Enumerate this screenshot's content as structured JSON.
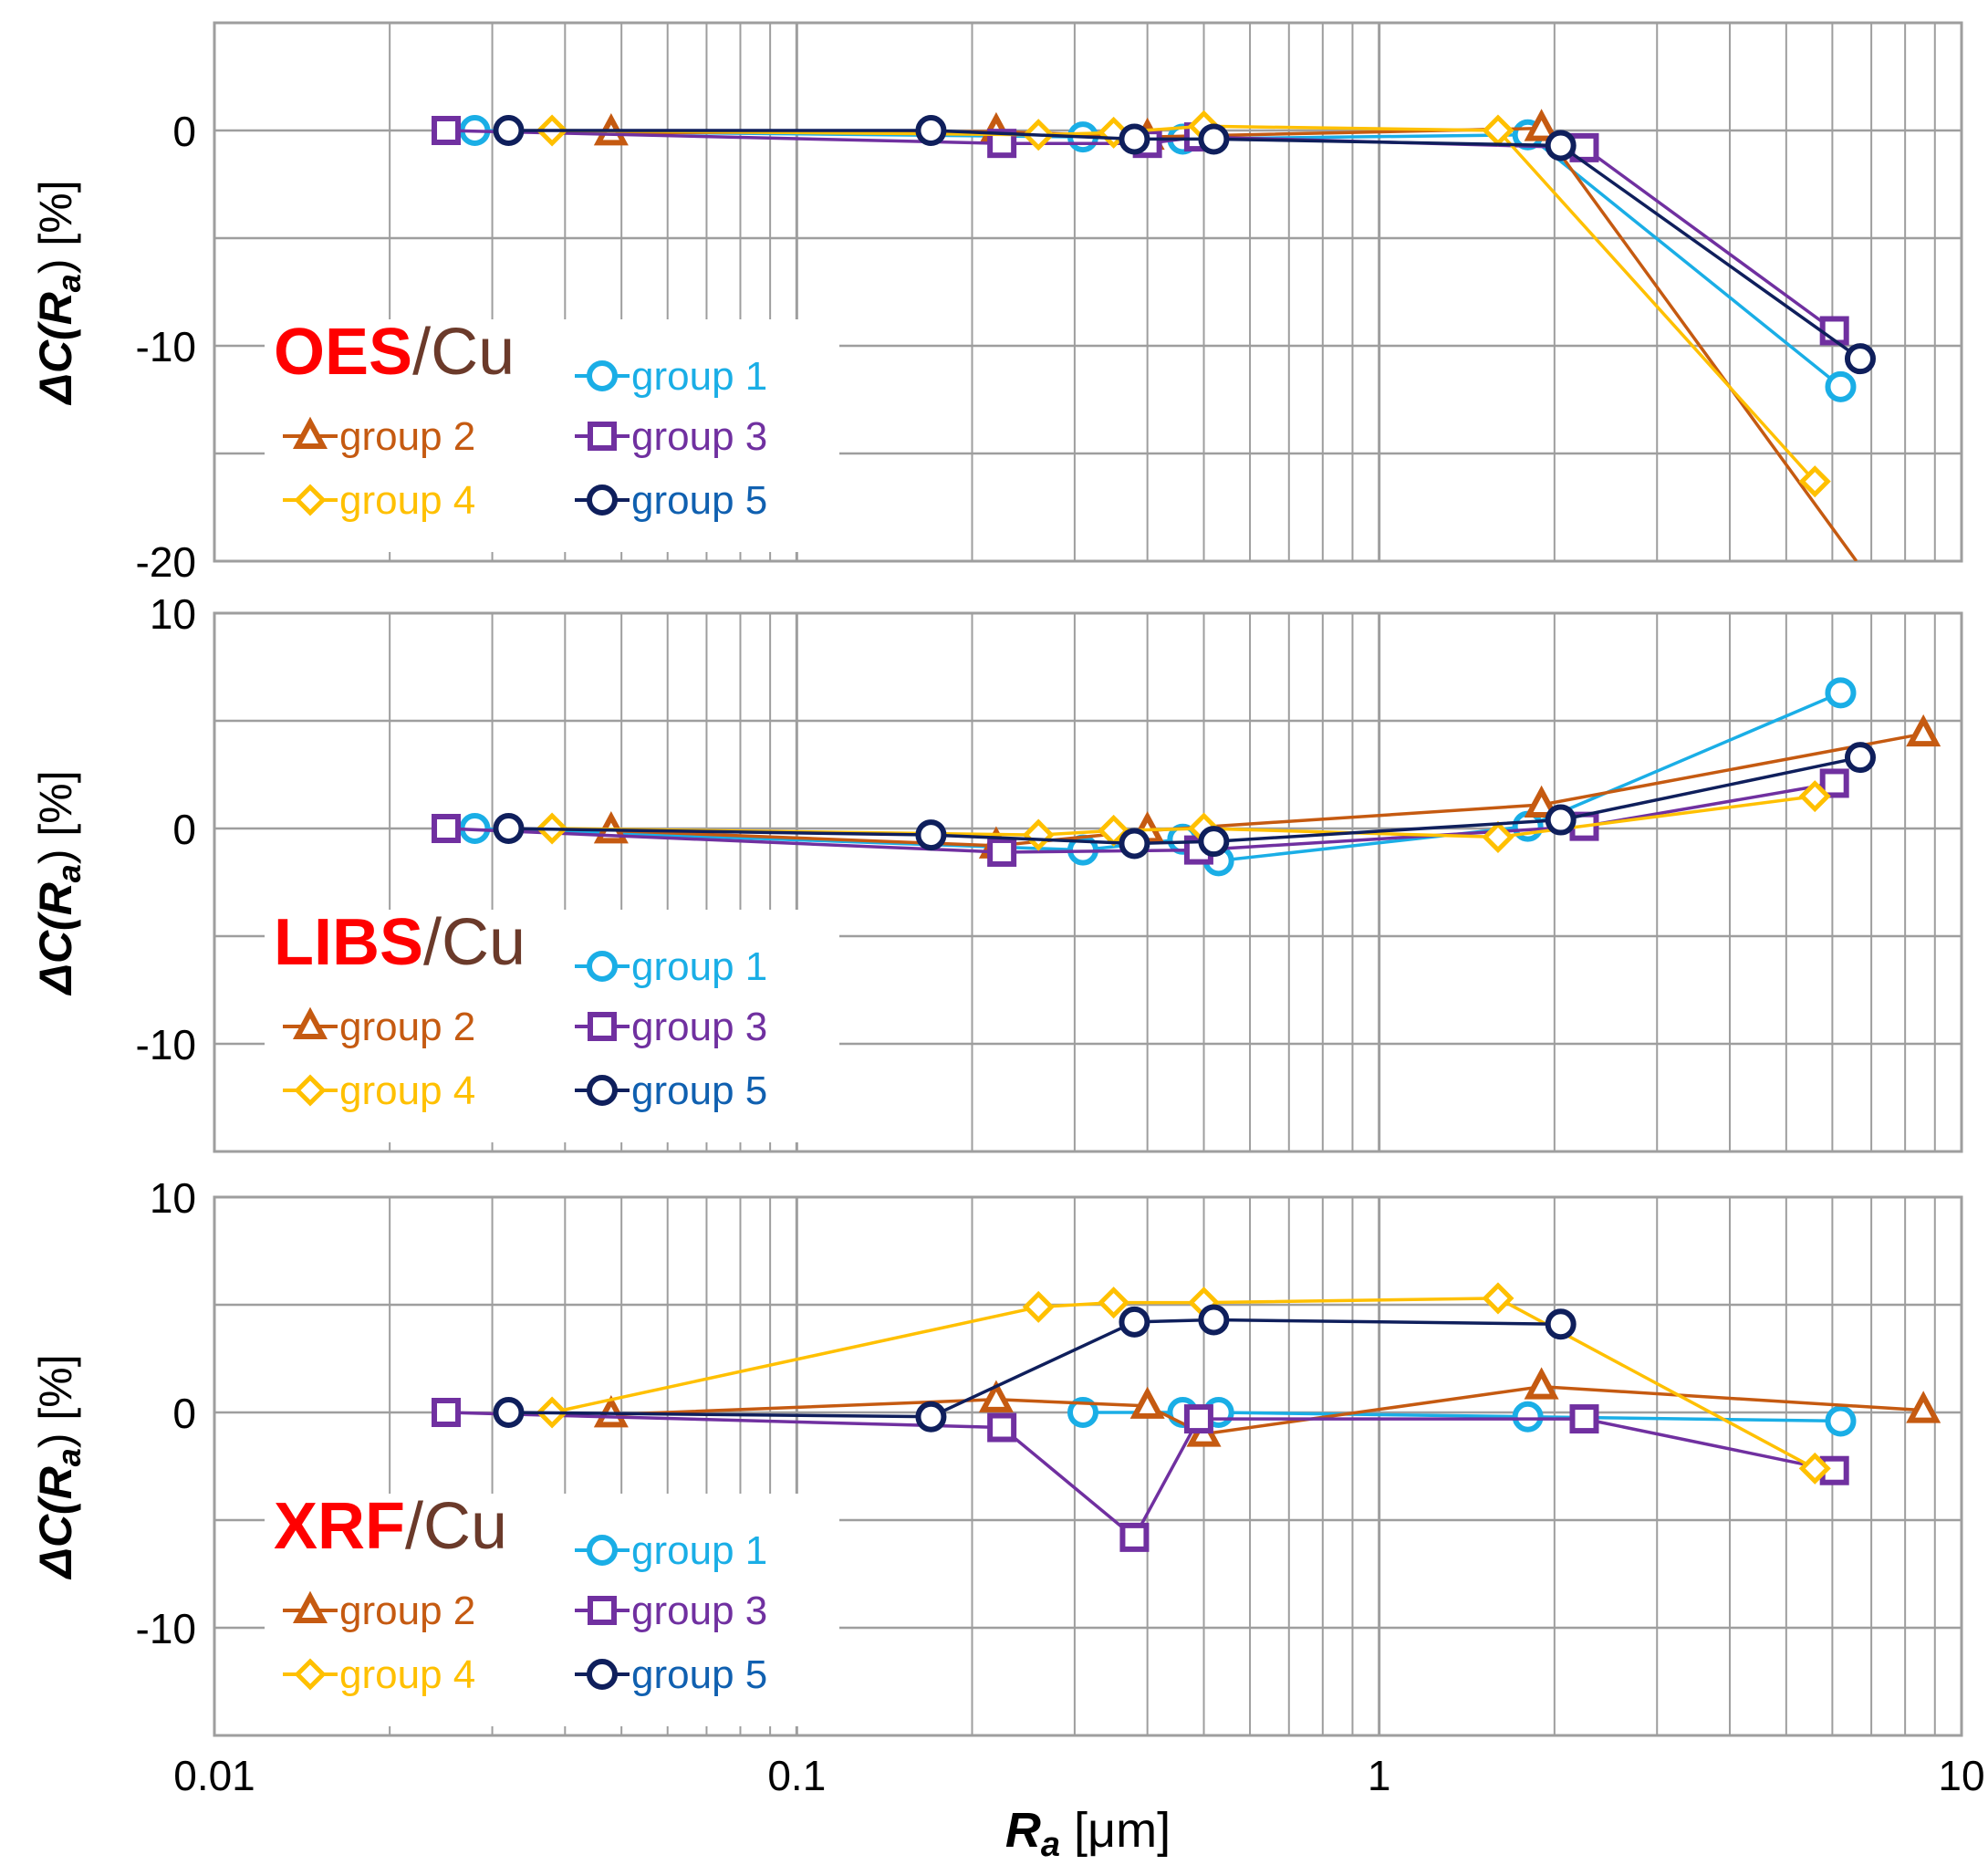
{
  "figure": {
    "x_axis_label_main": "R",
    "x_axis_label_sub": "a",
    "x_axis_label_unit": " [μm]",
    "x_ticks": [
      "0.01",
      "0.1",
      "1",
      "10"
    ]
  },
  "colors": {
    "group1": "#1aaee6",
    "group2": "#c55a11",
    "group3": "#7030a0",
    "group4": "#ffc000",
    "group5": "#0f1f5c",
    "title_red": "#ff0000",
    "title_brown": "#6b3a2a",
    "grid": "#9e9e9e",
    "frame": "#9e9e9e"
  },
  "chart_data": [
    {
      "type": "line",
      "title_method": "OES",
      "title_material": "/Cu",
      "ylabel_prefix": "ΔC(R",
      "ylabel_sub": "a",
      "ylabel_suffix": ") [%]",
      "xscale": "log",
      "xlim": [
        0.01,
        10
      ],
      "ylim": [
        -20,
        5
      ],
      "yticks": [
        0,
        -10,
        -20
      ],
      "ytick_labels": [
        "0",
        "-10",
        "-20"
      ],
      "legend_position": "bottom-left",
      "series": [
        {
          "name": "group 1",
          "marker": "circle",
          "x": [
            0.028,
            0.31,
            0.46,
            1.8,
            6.2
          ],
          "y": [
            0,
            -0.3,
            -0.4,
            -0.2,
            -11.9
          ]
        },
        {
          "name": "group 2",
          "marker": "triangle",
          "x": [
            0.048,
            0.22,
            0.4,
            1.9,
            6.6
          ],
          "y": [
            -0.1,
            -0.05,
            -0.3,
            0.1,
            -20
          ]
        },
        {
          "name": "group 3",
          "marker": "square",
          "x": [
            0.025,
            0.225,
            0.4,
            0.49,
            2.25,
            6.05
          ],
          "y": [
            0,
            -0.6,
            -0.6,
            -0.3,
            -0.8,
            -9.3
          ]
        },
        {
          "name": "group 4",
          "marker": "diamond",
          "x": [
            0.038,
            0.26,
            0.35,
            0.5,
            1.6,
            5.6
          ],
          "y": [
            0,
            -0.2,
            -0.1,
            0.2,
            0,
            -16.3
          ]
        },
        {
          "name": "group 5",
          "marker": "circle-dark",
          "x": [
            0.032,
            0.17,
            0.38,
            0.52,
            2.05,
            6.7
          ],
          "y": [
            0,
            0,
            -0.4,
            -0.4,
            -0.7,
            -10.6
          ]
        }
      ]
    },
    {
      "type": "line",
      "title_method": "LIBS",
      "title_material": "/Cu",
      "ylabel_prefix": "ΔC(R",
      "ylabel_sub": "a",
      "ylabel_suffix": ") [%]",
      "xscale": "log",
      "xlim": [
        0.01,
        10
      ],
      "ylim": [
        -15,
        10
      ],
      "yticks": [
        10,
        0,
        -10
      ],
      "ytick_labels": [
        "10",
        "0",
        "-10"
      ],
      "legend_position": "bottom-left",
      "series": [
        {
          "name": "group 1",
          "marker": "circle",
          "x": [
            0.028,
            0.31,
            0.46,
            0.53,
            1.8,
            6.2
          ],
          "y": [
            0,
            -1.0,
            -0.5,
            -1.5,
            0.1,
            6.3
          ]
        },
        {
          "name": "group 2",
          "marker": "triangle",
          "x": [
            0.048,
            0.22,
            0.4,
            1.9,
            8.6
          ],
          "y": [
            -0.1,
            -0.8,
            -0.1,
            1.1,
            4.4
          ]
        },
        {
          "name": "group 3",
          "marker": "square",
          "x": [
            0.025,
            0.225,
            0.49,
            2.25,
            6.05
          ],
          "y": [
            0,
            -1.1,
            -1.0,
            0.1,
            2.1
          ]
        },
        {
          "name": "group 4",
          "marker": "diamond",
          "x": [
            0.038,
            0.26,
            0.35,
            0.5,
            1.6,
            5.6
          ],
          "y": [
            0,
            -0.3,
            -0.1,
            0,
            -0.4,
            1.5
          ]
        },
        {
          "name": "group 5",
          "marker": "circle-dark",
          "x": [
            0.032,
            0.17,
            0.38,
            0.52,
            2.05,
            6.7
          ],
          "y": [
            0,
            -0.3,
            -0.7,
            -0.6,
            0.4,
            3.3
          ]
        }
      ]
    },
    {
      "type": "line",
      "title_method": "XRF",
      "title_material": "/Cu",
      "ylabel_prefix": "ΔC(R",
      "ylabel_sub": "a",
      "ylabel_suffix": ") [%]",
      "xscale": "log",
      "xlim": [
        0.01,
        10
      ],
      "ylim": [
        -15,
        10
      ],
      "yticks": [
        10,
        0,
        -10
      ],
      "ytick_labels": [
        "10",
        "0",
        "-10"
      ],
      "legend_position": "bottom-left",
      "series": [
        {
          "name": "group 1",
          "marker": "circle",
          "x": [
            0.31,
            0.46,
            0.53,
            1.8,
            6.2
          ],
          "y": [
            0,
            0,
            0,
            -0.2,
            -0.4
          ]
        },
        {
          "name": "group 2",
          "marker": "triangle",
          "x": [
            0.048,
            0.22,
            0.4,
            0.5,
            1.9,
            8.6
          ],
          "y": [
            -0.1,
            0.6,
            0.3,
            -1.0,
            1.2,
            0.1
          ]
        },
        {
          "name": "group 3",
          "marker": "square",
          "x": [
            0.025,
            0.225,
            0.38,
            0.49,
            2.25,
            6.05
          ],
          "y": [
            0,
            -0.7,
            -5.8,
            -0.3,
            -0.3,
            -2.7
          ]
        },
        {
          "name": "group 4",
          "marker": "diamond",
          "x": [
            0.038,
            0.26,
            0.35,
            0.5,
            1.6,
            5.6
          ],
          "y": [
            0,
            4.9,
            5.1,
            5.1,
            5.3,
            -2.6
          ]
        },
        {
          "name": "group 5",
          "marker": "circle-dark",
          "x": [
            0.032,
            0.17,
            0.38,
            0.52,
            2.05
          ],
          "y": [
            0,
            -0.2,
            4.2,
            4.3,
            4.1
          ]
        }
      ]
    }
  ]
}
